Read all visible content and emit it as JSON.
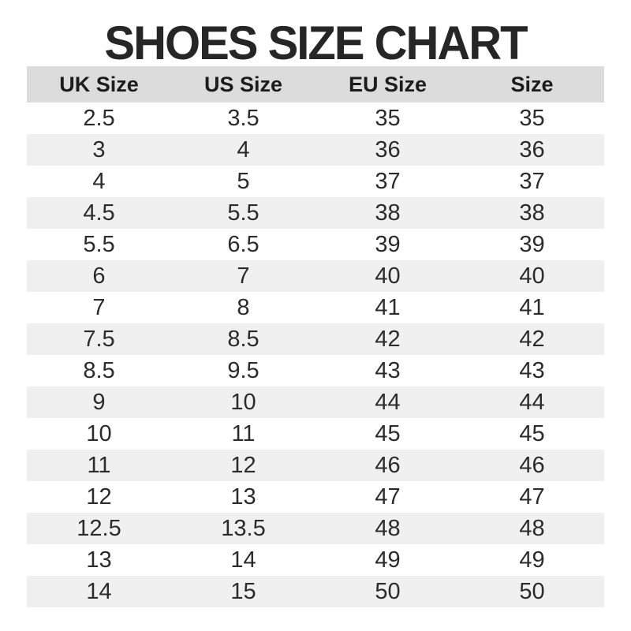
{
  "title": "SHOES SIZE CHART",
  "table": {
    "headers": [
      "UK Size",
      "US Size",
      "EU Size",
      "Size"
    ],
    "rows": [
      [
        "2.5",
        "3.5",
        "35",
        "35"
      ],
      [
        "3",
        "4",
        "36",
        "36"
      ],
      [
        "4",
        "5",
        "37",
        "37"
      ],
      [
        "4.5",
        "5.5",
        "38",
        "38"
      ],
      [
        "5.5",
        "6.5",
        "39",
        "39"
      ],
      [
        "6",
        "7",
        "40",
        "40"
      ],
      [
        "7",
        "8",
        "41",
        "41"
      ],
      [
        "7.5",
        "8.5",
        "42",
        "42"
      ],
      [
        "8.5",
        "9.5",
        "43",
        "43"
      ],
      [
        "9",
        "10",
        "44",
        "44"
      ],
      [
        "10",
        "11",
        "45",
        "45"
      ],
      [
        "11",
        "12",
        "46",
        "46"
      ],
      [
        "12",
        "13",
        "47",
        "47"
      ],
      [
        "12.5",
        "13.5",
        "48",
        "48"
      ],
      [
        "13",
        "14",
        "49",
        "49"
      ],
      [
        "14",
        "15",
        "50",
        "50"
      ]
    ]
  },
  "chart_data": {
    "type": "table",
    "title": "SHOES SIZE CHART",
    "columns": [
      "UK Size",
      "US Size",
      "EU Size",
      "Size"
    ],
    "rows": [
      [
        "2.5",
        "3.5",
        "35",
        "35"
      ],
      [
        "3",
        "4",
        "36",
        "36"
      ],
      [
        "4",
        "5",
        "37",
        "37"
      ],
      [
        "4.5",
        "5.5",
        "38",
        "38"
      ],
      [
        "5.5",
        "6.5",
        "39",
        "39"
      ],
      [
        "6",
        "7",
        "40",
        "40"
      ],
      [
        "7",
        "8",
        "41",
        "41"
      ],
      [
        "7.5",
        "8.5",
        "42",
        "42"
      ],
      [
        "8.5",
        "9.5",
        "43",
        "43"
      ],
      [
        "9",
        "10",
        "44",
        "44"
      ],
      [
        "10",
        "11",
        "45",
        "45"
      ],
      [
        "11",
        "12",
        "46",
        "46"
      ],
      [
        "12",
        "13",
        "47",
        "47"
      ],
      [
        "12.5",
        "13.5",
        "48",
        "48"
      ],
      [
        "13",
        "14",
        "49",
        "49"
      ],
      [
        "14",
        "15",
        "50",
        "50"
      ]
    ],
    "layout_hints": {
      "header_background": "#dcdcdc",
      "alternating_row_background": "#f0f0f0",
      "first_data_row_background": "#ffffff",
      "text_alignment": "center"
    }
  },
  "colors": {
    "header_bg": "#dcdcdc",
    "row_alt_bg": "#f0f0f0",
    "text": "#2b2b2b",
    "title": "#262626",
    "background": "#ffffff"
  }
}
